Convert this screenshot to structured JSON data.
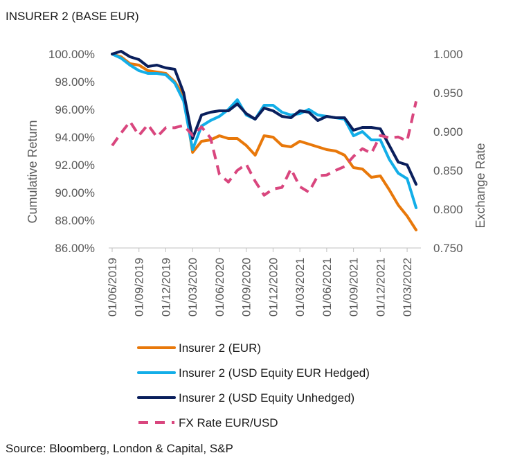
{
  "title": "INSURER 2 (BASE EUR)",
  "source": "Source: Bloomberg, London & Capital, S&P",
  "chart_data": {
    "type": "line",
    "ylabel": "Cumulative Return",
    "y2label": "Exchange Rate",
    "ylim": [
      86,
      100
    ],
    "y2lim": [
      0.75,
      1.0
    ],
    "yticks": [
      "100.00%",
      "98.00%",
      "96.00%",
      "94.00%",
      "92.00%",
      "90.00%",
      "88.00%",
      "86.00%"
    ],
    "y2ticks": [
      "1.000",
      "0.950",
      "0.900",
      "0.850",
      "0.800",
      "0.750"
    ],
    "xticks": [
      "01/06/2019",
      "01/09/2019",
      "01/12/2019",
      "01/03/2020",
      "01/06/2020",
      "01/09/2020",
      "01/12/2020",
      "01/03/2021",
      "01/06/2021",
      "01/09/2021",
      "01/12/2021",
      "01/03/2022"
    ],
    "x": [
      "Jun 2019",
      "Jul 2019",
      "Aug 2019",
      "Sep 2019",
      "Oct 2019",
      "Nov 2019",
      "Dec 2019",
      "Jan 2020",
      "Feb 2020",
      "Mar 2020",
      "Apr 2020",
      "May 2020",
      "Jun 2020",
      "Jul 2020",
      "Aug 2020",
      "Sep 2020",
      "Oct 2020",
      "Nov 2020",
      "Dec 2020",
      "Jan 2021",
      "Feb 2021",
      "Mar 2021",
      "Apr 2021",
      "May 2021",
      "Jun 2021",
      "Jul 2021",
      "Aug 2021",
      "Sep 2021",
      "Oct 2021",
      "Nov 2021",
      "Dec 2021",
      "Jan 2022",
      "Feb 2022",
      "Mar 2022",
      "Apr 2022"
    ],
    "series": [
      {
        "name": "Insurer 2 (EUR)",
        "axis": "left",
        "color": "#e8780a",
        "dash": false,
        "values": [
          100.0,
          99.8,
          99.3,
          99.2,
          98.8,
          98.7,
          98.6,
          98.0,
          97.0,
          92.9,
          93.7,
          93.8,
          94.1,
          93.9,
          93.9,
          93.4,
          92.7,
          94.1,
          94.0,
          93.4,
          93.3,
          93.7,
          93.5,
          93.3,
          93.1,
          93.0,
          92.7,
          91.8,
          91.7,
          91.1,
          91.2,
          90.2,
          89.1,
          88.3,
          87.3
        ]
      },
      {
        "name": "Insurer 2 (USD Equity EUR Hedged)",
        "axis": "left",
        "color": "#13aee8",
        "dash": false,
        "values": [
          100.0,
          99.7,
          99.2,
          98.8,
          98.6,
          98.6,
          98.5,
          97.9,
          96.6,
          93.1,
          94.8,
          95.2,
          95.5,
          96.0,
          96.7,
          95.6,
          95.3,
          96.3,
          96.3,
          95.8,
          95.6,
          95.7,
          96.0,
          95.6,
          95.5,
          95.4,
          95.3,
          94.1,
          94.4,
          93.8,
          93.8,
          92.4,
          91.4,
          91.0,
          88.9
        ]
      },
      {
        "name": "Insurer 2 (USD Equity Unhedged)",
        "axis": "left",
        "color": "#0a1f5c",
        "dash": false,
        "values": [
          100.0,
          100.2,
          99.8,
          99.6,
          99.1,
          99.2,
          99.0,
          98.9,
          97.2,
          93.9,
          95.6,
          95.8,
          95.9,
          95.9,
          96.4,
          95.7,
          95.3,
          96.1,
          95.9,
          95.5,
          95.4,
          95.9,
          95.8,
          95.2,
          95.5,
          95.4,
          95.4,
          94.5,
          94.7,
          94.7,
          94.6,
          93.4,
          92.2,
          92.0,
          90.6
        ]
      },
      {
        "name": "FX Rate EUR/USD",
        "axis": "right",
        "color": "#d9467e",
        "dash": true,
        "values": [
          0.882,
          0.898,
          0.913,
          0.895,
          0.909,
          0.893,
          0.905,
          0.905,
          0.908,
          0.895,
          0.906,
          0.892,
          0.845,
          0.835,
          0.85,
          0.858,
          0.836,
          0.818,
          0.826,
          0.828,
          0.852,
          0.829,
          0.822,
          0.843,
          0.844,
          0.85,
          0.855,
          0.868,
          0.878,
          0.872,
          0.895,
          0.892,
          0.893,
          0.888,
          0.939
        ]
      }
    ]
  }
}
